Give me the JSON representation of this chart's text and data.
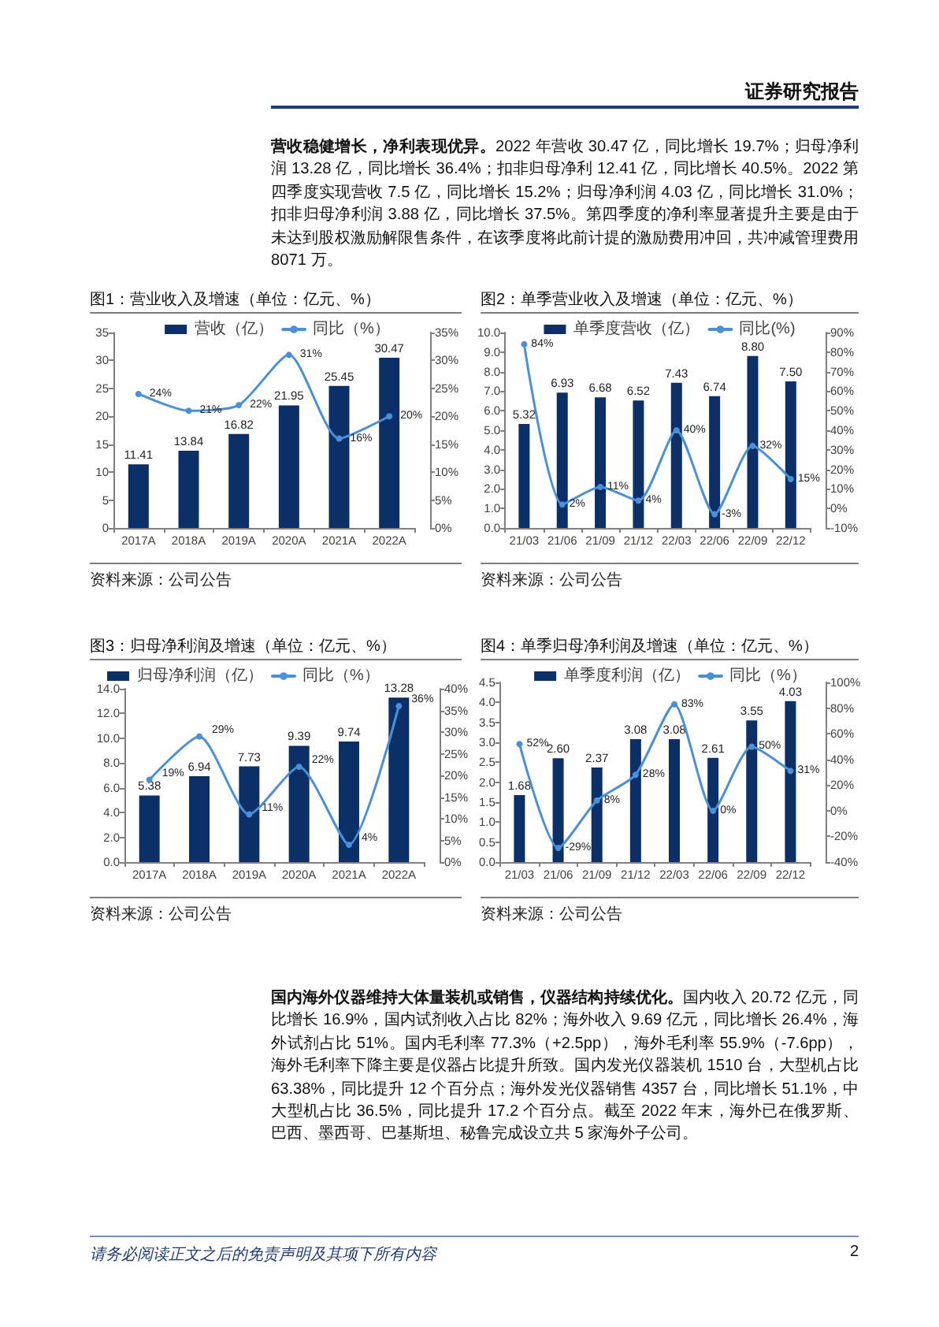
{
  "chart_data": [
    {
      "type": "other",
      "title": "证券研究报告"
    },
    {
      "type": "other",
      "title": "营收稳健增长，净利表现优异。",
      "annotations": [
        "2022 年营收 30.47 亿，同比增长 19.7%；归母净利润 13.28 亿，同比增长 36.4%；扣非归母净利 12.41 亿，同比增长 40.5%。2022 第四季度实现营收 7.5 亿，同比增长 15.2%；归母净利润 4.03 亿，同比增长 31.0%；扣非归母净利润 3.88 亿，同比增长 37.5%。第四季度的净利率显著提升主要是由于未达到股权激励解限售条件，在该季度将此前计提的激励费用冲回，共冲减管理费用 8071 万。"
      ]
    },
    {
      "type": "bar",
      "title": "图1：营业收入及增速（单位：亿元、%）",
      "categories": [
        "2017A",
        "2018A",
        "2019A",
        "2020A",
        "2021A",
        "2022A"
      ],
      "series": [
        {
          "name": "营收（亿）",
          "color": "#0c2f67",
          "values": [
            11.41,
            13.84,
            16.82,
            21.95,
            25.45,
            30.47
          ],
          "value_labels": [
            "11.41",
            "13.84",
            "16.82",
            "21.95",
            "25.45",
            "30.47"
          ]
        },
        {
          "type": "line",
          "name": "同比（%）",
          "color": "#4a90d9",
          "axis": "y2",
          "values": [
            24,
            21,
            22,
            31,
            16,
            20
          ],
          "value_labels": [
            "24%",
            "21%",
            "22%",
            "31%",
            "16%",
            "20%"
          ]
        }
      ],
      "ylim": [
        0,
        35
      ],
      "yticks": [
        0,
        5,
        10,
        15,
        20,
        25,
        30,
        35
      ],
      "y2lim": [
        0,
        35
      ],
      "y2ticks": [
        {
          "value": 0,
          "label": "0%"
        },
        {
          "value": 5,
          "label": "5%"
        },
        {
          "value": 10,
          "label": "10%"
        },
        {
          "value": 15,
          "label": "15%"
        },
        {
          "value": 20,
          "label": "20%"
        },
        {
          "value": 25,
          "label": "25%"
        },
        {
          "value": 30,
          "label": "30%"
        },
        {
          "value": 35,
          "label": "35%"
        }
      ],
      "legend": "top",
      "marker": "circle",
      "annotations": [
        "资料来源：公司公告"
      ]
    },
    {
      "type": "bar",
      "title": "图2：单季营业收入及增速（单位：亿元、%）",
      "categories": [
        "21/03",
        "21/06",
        "21/09",
        "21/12",
        "22/03",
        "22/06",
        "22/09",
        "22/12"
      ],
      "series": [
        {
          "name": "单季度营收（亿）",
          "color": "#0c2f67",
          "values": [
            5.32,
            6.93,
            6.68,
            6.52,
            7.43,
            6.74,
            8.8,
            7.5
          ],
          "value_labels": [
            "5.32",
            "6.93",
            "6.68",
            "6.52",
            "7.43",
            "6.74",
            "8.80",
            "7.50"
          ]
        },
        {
          "type": "line",
          "name": "同比(%)",
          "color": "#4a90d9",
          "axis": "y2",
          "values": [
            84,
            2,
            11,
            4,
            40,
            -3,
            32,
            15
          ],
          "value_labels": [
            "84%",
            "2%",
            "11%",
            "4%",
            "40%",
            "-3%",
            "32%",
            "15%"
          ]
        }
      ],
      "ylim": [
        0,
        10
      ],
      "yticks": [
        {
          "value": 0,
          "label": "0.0"
        },
        {
          "value": 1,
          "label": "1.0"
        },
        {
          "value": 2,
          "label": "2.0"
        },
        {
          "value": 3,
          "label": "3.0"
        },
        {
          "value": 4,
          "label": "4.0"
        },
        {
          "value": 5,
          "label": "5.0"
        },
        {
          "value": 6,
          "label": "6.0"
        },
        {
          "value": 7,
          "label": "7.0"
        },
        {
          "value": 8,
          "label": "8.0"
        },
        {
          "value": 9,
          "label": "9.0"
        },
        {
          "value": 10,
          "label": "10.0"
        }
      ],
      "y2lim": [
        -10,
        90
      ],
      "y2ticks": [
        {
          "value": -10,
          "label": "-10%"
        },
        {
          "value": 0,
          "label": "0%"
        },
        {
          "value": 10,
          "label": "10%"
        },
        {
          "value": 20,
          "label": "20%"
        },
        {
          "value": 30,
          "label": "30%"
        },
        {
          "value": 40,
          "label": "40%"
        },
        {
          "value": 50,
          "label": "50%"
        },
        {
          "value": 60,
          "label": "60%"
        },
        {
          "value": 70,
          "label": "70%"
        },
        {
          "value": 80,
          "label": "80%"
        },
        {
          "value": 90,
          "label": "90%"
        }
      ],
      "legend": "top",
      "marker": "circle",
      "annotations": [
        "资料来源：公司公告"
      ]
    },
    {
      "type": "bar",
      "title": "图3：归母净利润及增速（单位：亿元、%）",
      "categories": [
        "2017A",
        "2018A",
        "2019A",
        "2020A",
        "2021A",
        "2022A"
      ],
      "series": [
        {
          "name": "归母净利润（亿）",
          "color": "#0c2f67",
          "values": [
            5.38,
            6.94,
            7.73,
            9.39,
            9.74,
            13.28
          ],
          "value_labels": [
            "5.38",
            "6.94",
            "7.73",
            "9.39",
            "9.74",
            "13.28"
          ]
        },
        {
          "type": "line",
          "name": "同比（%）",
          "color": "#4a90d9",
          "axis": "y2",
          "values": [
            19,
            29,
            11,
            22,
            4,
            36
          ],
          "value_labels": [
            "19%",
            "29%",
            "11%",
            "22%",
            "4%",
            "36%"
          ]
        }
      ],
      "ylim": [
        0,
        14
      ],
      "yticks": [
        {
          "value": 0,
          "label": "0.0"
        },
        {
          "value": 2,
          "label": "2.0"
        },
        {
          "value": 4,
          "label": "4.0"
        },
        {
          "value": 6,
          "label": "6.0"
        },
        {
          "value": 8,
          "label": "8.0"
        },
        {
          "value": 10,
          "label": "10.0"
        },
        {
          "value": 12,
          "label": "12.0"
        },
        {
          "value": 14,
          "label": "14.0"
        }
      ],
      "y2lim": [
        0,
        40
      ],
      "y2ticks": [
        {
          "value": 0,
          "label": "0%"
        },
        {
          "value": 5,
          "label": "5%"
        },
        {
          "value": 10,
          "label": "10%"
        },
        {
          "value": 15,
          "label": "15%"
        },
        {
          "value": 20,
          "label": "20%"
        },
        {
          "value": 25,
          "label": "25%"
        },
        {
          "value": 30,
          "label": "30%"
        },
        {
          "value": 35,
          "label": "35%"
        },
        {
          "value": 40,
          "label": "40%"
        }
      ],
      "legend": "top",
      "marker": "circle",
      "annotations": [
        "资料来源：公司公告"
      ]
    },
    {
      "type": "bar",
      "title": "图4：单季归母净利润及增速（单位：亿元、%）",
      "categories": [
        "21/03",
        "21/06",
        "21/09",
        "21/12",
        "22/03",
        "22/06",
        "22/09",
        "22/12"
      ],
      "series": [
        {
          "name": "单季度利润（亿）",
          "color": "#0c2f67",
          "values": [
            1.68,
            2.6,
            2.37,
            3.08,
            3.08,
            2.61,
            3.55,
            4.03
          ],
          "value_labels": [
            "1.68",
            "2.60",
            "2.37",
            "3.08",
            "3.08",
            "2.61",
            "3.55",
            "4.03"
          ]
        },
        {
          "type": "line",
          "name": "同比（%）",
          "color": "#4a90d9",
          "axis": "y2",
          "values": [
            52,
            -29,
            8,
            28,
            83,
            0,
            50,
            31
          ],
          "value_labels": [
            "52%",
            "-29%",
            "8%",
            "28%",
            "83%",
            "0%",
            "50%",
            "31%"
          ]
        }
      ],
      "ylim": [
        0,
        4.5
      ],
      "yticks": [
        {
          "value": 0,
          "label": "0.0"
        },
        0.5,
        {
          "value": 1,
          "label": "1.0"
        },
        1.5,
        {
          "value": 2,
          "label": "2.0"
        },
        2.5,
        {
          "value": 3,
          "label": "3.0"
        },
        3.5,
        {
          "value": 4,
          "label": "4.0"
        },
        4.5
      ],
      "y2lim": [
        -40,
        100
      ],
      "y2ticks": [
        {
          "value": -40,
          "label": "-40%"
        },
        {
          "value": -20,
          "label": "-20%"
        },
        {
          "value": 0,
          "label": "0%"
        },
        {
          "value": 20,
          "label": "20%"
        },
        {
          "value": 40,
          "label": "40%"
        },
        {
          "value": 60,
          "label": "60%"
        },
        {
          "value": 80,
          "label": "80%"
        },
        {
          "value": 100,
          "label": "100%"
        }
      ],
      "legend": "top",
      "marker": "circle",
      "annotations": [
        "资料来源：公司公告"
      ]
    },
    {
      "type": "other",
      "title": "国内海外仪器维持大体量装机或销售，仪器结构持续优化。",
      "annotations": [
        "国内收入 20.72 亿元，同比增长 16.9%，国内试剂收入占比 82%；海外收入 9.69 亿元，同比增长 26.4%，海外试剂占比 51%。国内毛利率 77.3%（+2.5pp），海外毛利率 55.9%（-7.6pp），海外毛利率下降主要是仪器占比提升所致。国内发光仪器装机 1510 台，大型机占比 63.38%，同比提升 12 个百分点；海外发光仪器销售 4357 台，同比增长 51.1%，中大型机占比 36.5%，同比提升 17.2 个百分点。截至 2022 年末，海外已在俄罗斯、巴西、墨西哥、巴基斯坦、秘鲁完成设立共 5 家海外子公司。"
      ]
    },
    {
      "type": "other",
      "annotations": [
        "请务必阅读正文之后的免责声明及其项下所有内容",
        "2"
      ]
    }
  ]
}
